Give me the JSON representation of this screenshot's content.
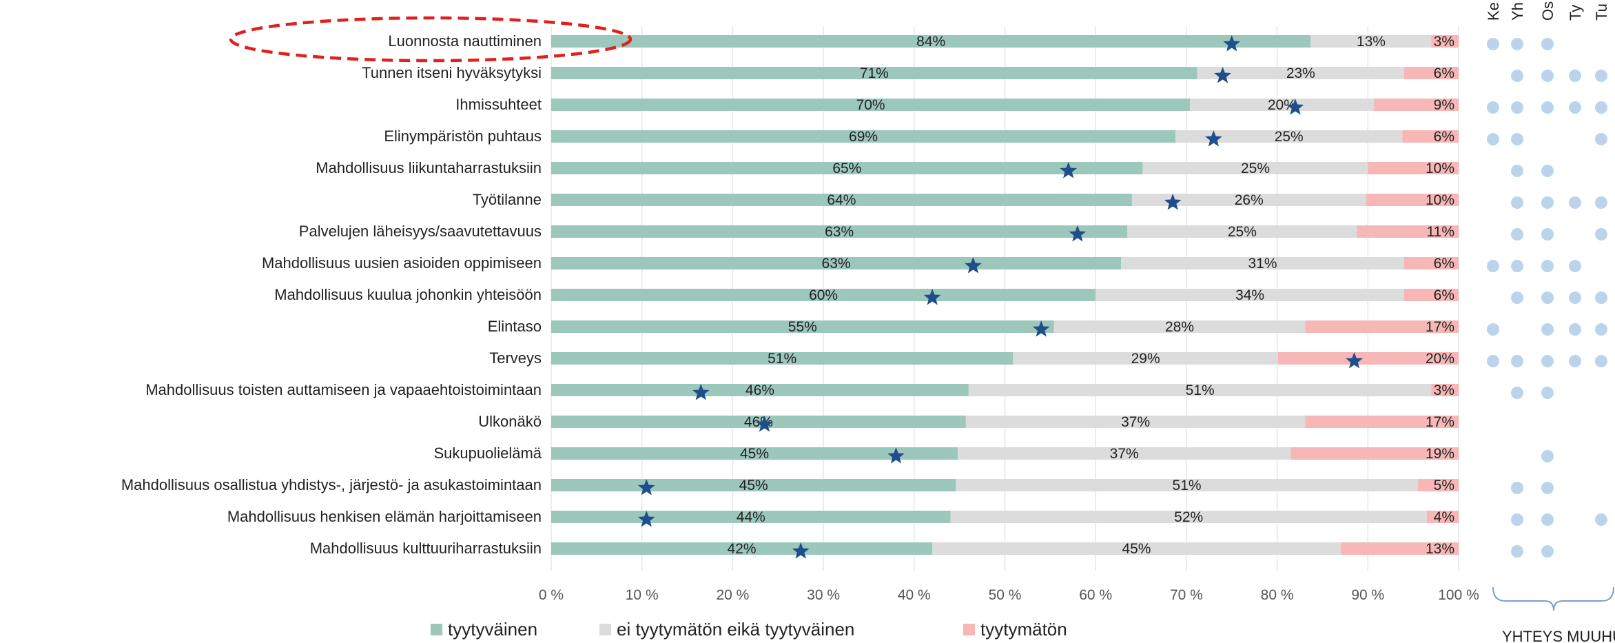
{
  "chart_data": {
    "type": "bar",
    "orientation": "horizontal",
    "stacked": true,
    "xlim": [
      0,
      100
    ],
    "x_ticks": [
      "0 %",
      "10 %",
      "20 %",
      "30 %",
      "40 %",
      "50 %",
      "60 %",
      "70 %",
      "80 %",
      "90 %",
      "100 %"
    ],
    "categories": [
      "Luonnosta nauttiminen",
      "Tunnen itseni hyväksytyksi",
      "Ihmissuhteet",
      "Elinympäristön puhtaus",
      "Mahdollisuus liikuntaharrastuksiin",
      "Työtilanne",
      "Palvelujen läheisyys/saavutettavuus",
      "Mahdollisuus uusien asioiden oppimiseen",
      "Mahdollisuus kuulua johonkin yhteisöön",
      "Elintaso",
      "Terveys",
      "Mahdollisuus toisten auttamiseen ja vapaaehtoistoimintaan",
      "Ulkonäkö",
      "Sukupuolielämä",
      "Mahdollisuus osallistua yhdistys-, järjestö- ja asukastoimintaan",
      "Mahdollisuus henkisen elämän harjoittamiseen",
      "Mahdollisuus kulttuuriharrastuksiin"
    ],
    "series": [
      {
        "name": "tyytyväinen",
        "color": "#9cc7bb",
        "values": [
          84,
          71,
          70,
          69,
          65,
          64,
          63,
          63,
          60,
          55,
          51,
          46,
          46,
          45,
          45,
          44,
          42
        ],
        "labels": [
          "84%",
          "71%",
          "70%",
          "69%",
          "65%",
          "64%",
          "63%",
          "63%",
          "60%",
          "55%",
          "51%",
          "46%",
          "46%",
          "45%",
          "45%",
          "44%",
          "42%"
        ],
        "widths": [
          83.7,
          71.2,
          70.4,
          68.8,
          65.2,
          64.0,
          63.5,
          62.8,
          60.0,
          55.4,
          50.9,
          46.0,
          45.7,
          44.8,
          44.6,
          44.0,
          42.0
        ]
      },
      {
        "name": "ei tyytymätön eikä tyytyväinen",
        "color": "#dcdcdc",
        "values": [
          13,
          23,
          20,
          25,
          25,
          26,
          25,
          31,
          34,
          28,
          29,
          51,
          37,
          37,
          51,
          52,
          45
        ],
        "labels": [
          "13%",
          "23%",
          "20%",
          "25%",
          "25%",
          "26%",
          "25%",
          "31%",
          "34%",
          "28%",
          "29%",
          "51%",
          "37%",
          "37%",
          "51%",
          "52%",
          "45%"
        ],
        "widths": [
          13.3,
          22.8,
          20.3,
          25.0,
          24.8,
          25.8,
          25.3,
          31.2,
          34.0,
          27.7,
          29.2,
          51.0,
          37.4,
          36.7,
          50.9,
          52.5,
          45.0
        ]
      },
      {
        "name": "tyytymätön",
        "color": "#f6b7b6",
        "values": [
          3,
          6,
          9,
          6,
          10,
          10,
          11,
          6,
          6,
          17,
          20,
          3,
          17,
          19,
          5,
          4,
          13
        ],
        "labels": [
          "3%",
          "6%",
          "9%",
          "6%",
          "10%",
          "10%",
          "11%",
          "6%",
          "6%",
          "17%",
          "20%",
          "3%",
          "17%",
          "19%",
          "5%",
          "4%",
          "13%"
        ],
        "widths": [
          3.0,
          6.0,
          9.3,
          6.2,
          10.0,
          10.2,
          11.2,
          6.0,
          6.0,
          16.9,
          19.9,
          3.0,
          16.9,
          18.5,
          4.5,
          3.5,
          13.0
        ]
      }
    ],
    "stars": {
      "color": "#1f4e8c",
      "values": [
        75,
        74,
        82,
        73,
        57,
        68.5,
        58,
        46.5,
        42,
        54,
        88.5,
        16.5,
        23.5,
        38,
        10.5,
        10.5,
        27.5
      ]
    },
    "highlight": {
      "category_index": 0,
      "style": "red dashed ellipse",
      "color": "#e0201e"
    },
    "legend": {
      "placement": "bottom",
      "entries": [
        "tyytyväinen",
        "ei tyytymätön eikä tyytyväinen",
        "tyytymätön"
      ]
    },
    "connection_panel": {
      "column_headers": [
        "Ke",
        "Yh",
        "Os",
        "Ty",
        "Tu"
      ],
      "dot_color": "#bcd3ec",
      "matrix": [
        [
          1,
          1,
          1,
          0,
          0
        ],
        [
          0,
          1,
          1,
          1,
          1
        ],
        [
          1,
          1,
          1,
          1,
          1
        ],
        [
          1,
          1,
          0,
          0,
          1
        ],
        [
          0,
          1,
          1,
          0,
          0
        ],
        [
          0,
          1,
          1,
          1,
          1
        ],
        [
          0,
          1,
          1,
          0,
          1
        ],
        [
          1,
          1,
          1,
          1,
          0
        ],
        [
          0,
          1,
          1,
          1,
          1
        ],
        [
          1,
          0,
          1,
          1,
          1
        ],
        [
          1,
          1,
          1,
          1,
          1
        ],
        [
          0,
          1,
          1,
          0,
          0
        ],
        [
          0,
          0,
          0,
          0,
          0
        ],
        [
          0,
          0,
          1,
          0,
          0
        ],
        [
          0,
          1,
          1,
          0,
          0
        ],
        [
          0,
          1,
          1,
          0,
          1
        ],
        [
          0,
          1,
          1,
          0,
          0
        ]
      ],
      "footer": "YHTEYS MUUHUN"
    }
  }
}
